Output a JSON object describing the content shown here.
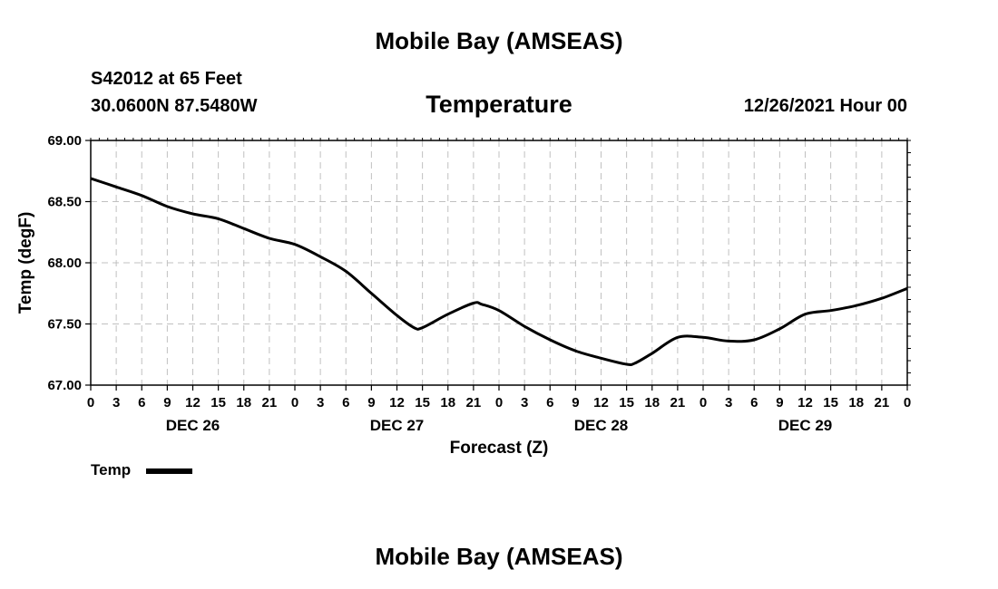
{
  "page_title": "Mobile Bay (AMSEAS)",
  "header": {
    "station": "S42012 at 65 Feet",
    "coords": "30.0600N  87.5480W",
    "run_time": "12/26/2021 Hour 00"
  },
  "footer_title": "Mobile Bay (AMSEAS)",
  "chart_data": {
    "type": "line",
    "title": "Temperature",
    "xlabel": "Forecast (Z)",
    "ylabel": "Temp (degF)",
    "ylim": [
      67.0,
      69.0
    ],
    "y_ticks": [
      "67.00",
      "67.50",
      "68.00",
      "68.50",
      "69.00"
    ],
    "y_tick_values": [
      67.0,
      67.5,
      68.0,
      68.5,
      69.0
    ],
    "xlim": [
      0,
      96
    ],
    "x_tick_labels": [
      "0",
      "3",
      "6",
      "9",
      "12",
      "15",
      "18",
      "21",
      "0",
      "3",
      "6",
      "9",
      "12",
      "15",
      "18",
      "21",
      "0",
      "3",
      "6",
      "9",
      "12",
      "15",
      "18",
      "21",
      "0",
      "3",
      "6",
      "9",
      "12",
      "15",
      "18",
      "21",
      "0"
    ],
    "day_labels": [
      {
        "label": "DEC 26",
        "hour": 12
      },
      {
        "label": "DEC 27",
        "hour": 36
      },
      {
        "label": "DEC 28",
        "hour": 60
      },
      {
        "label": "DEC 29",
        "hour": 84
      }
    ],
    "grid": true,
    "legend_position": "bottom-left",
    "series": [
      {
        "name": "Temp",
        "color": "#000000",
        "x": [
          0,
          3,
          6,
          9,
          12,
          15,
          18,
          21,
          24,
          27,
          30,
          33,
          36,
          38,
          39,
          42,
          45,
          46,
          48,
          51,
          54,
          57,
          60,
          63,
          64,
          66,
          69,
          72,
          75,
          78,
          81,
          84,
          87,
          90,
          93,
          96
        ],
        "values": [
          68.69,
          68.62,
          68.55,
          68.46,
          68.4,
          68.36,
          68.28,
          68.2,
          68.15,
          68.05,
          67.93,
          67.75,
          67.57,
          67.47,
          67.47,
          67.58,
          67.67,
          67.66,
          67.61,
          67.48,
          67.37,
          67.28,
          67.22,
          67.17,
          67.18,
          67.26,
          67.39,
          67.39,
          67.36,
          67.37,
          67.46,
          67.58,
          67.61,
          67.65,
          67.71,
          67.79
        ]
      }
    ]
  }
}
